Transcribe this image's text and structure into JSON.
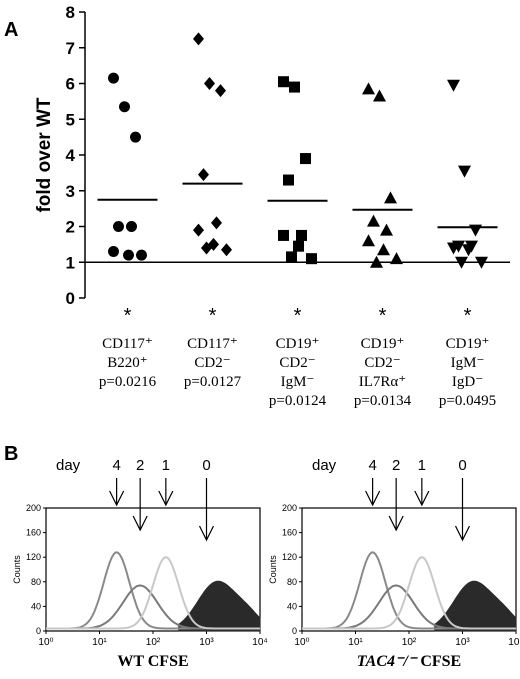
{
  "chart_data": [
    {
      "type": "scatter",
      "panel_label": "A",
      "ylabel": "fold over WT",
      "ylim": [
        0,
        8
      ],
      "yticks": [
        "0",
        "1",
        "2",
        "3",
        "4",
        "5",
        "6",
        "7",
        "8"
      ],
      "reference_line": 1,
      "categories": [
        {
          "lines": [
            "CD117⁺",
            "B220⁺",
            "p=0.0216"
          ],
          "star": "*",
          "marker": "circle",
          "mean": 2.75,
          "points": [
            6.15,
            5.35,
            4.5,
            2.0,
            2.0,
            1.3,
            1.2,
            1.2
          ]
        },
        {
          "lines": [
            "CD117⁺",
            "CD2⁻",
            "p=0.0127"
          ],
          "star": "*",
          "marker": "diamond",
          "mean": 3.2,
          "points": [
            7.25,
            6.0,
            5.8,
            3.45,
            2.1,
            1.9,
            1.5,
            1.35,
            1.4
          ]
        },
        {
          "lines": [
            "CD19⁺",
            "CD2⁻",
            "IgM⁻",
            "p=0.0124"
          ],
          "star": "*",
          "marker": "square",
          "mean": 2.72,
          "points": [
            6.05,
            5.9,
            3.9,
            3.3,
            1.75,
            1.75,
            1.45,
            1.1,
            1.15
          ]
        },
        {
          "lines": [
            "CD19⁺",
            "CD2⁻",
            "IL7Rα⁺",
            "p=0.0134"
          ],
          "star": "*",
          "marker": "triangle-up",
          "mean": 2.47,
          "points": [
            5.85,
            5.65,
            2.8,
            2.15,
            1.9,
            1.6,
            1.35,
            1.1,
            1.0
          ]
        },
        {
          "lines": [
            "CD19⁺",
            "IgM⁻",
            "IgD⁻",
            "p=0.0495"
          ],
          "star": "*",
          "marker": "triangle-down",
          "mean": 1.98,
          "points": [
            5.95,
            3.55,
            1.9,
            1.45,
            1.45,
            1.4,
            1.35,
            1.0,
            1.0
          ]
        }
      ]
    },
    {
      "type": "histogram",
      "panel_label": "B",
      "ylabel": "Counts",
      "ylim": [
        0,
        200
      ],
      "yticks": [
        "0",
        "40",
        "80",
        "120",
        "160",
        "200"
      ],
      "xscale": "log",
      "xticks": [
        "10⁰",
        "10¹",
        "10²",
        "10³",
        "10⁴"
      ],
      "day_label": "day",
      "panels": [
        {
          "xlabel_prefix": "WT",
          "xlabel_suffix": " CFSE",
          "days": [
            {
              "label": "4",
              "x": 0.33
            },
            {
              "label": "2",
              "x": 0.44
            },
            {
              "label": "1",
              "x": 0.56
            },
            {
              "label": "0",
              "x": 0.75
            }
          ]
        },
        {
          "xlabel_prefix": "TAC4⁻/⁻",
          "xlabel_suffix": " CFSE",
          "days": [
            {
              "label": "4",
              "x": 0.33
            },
            {
              "label": "2",
              "x": 0.44
            },
            {
              "label": "1",
              "x": 0.56
            },
            {
              "label": "0",
              "x": 0.75
            }
          ]
        }
      ]
    }
  ]
}
